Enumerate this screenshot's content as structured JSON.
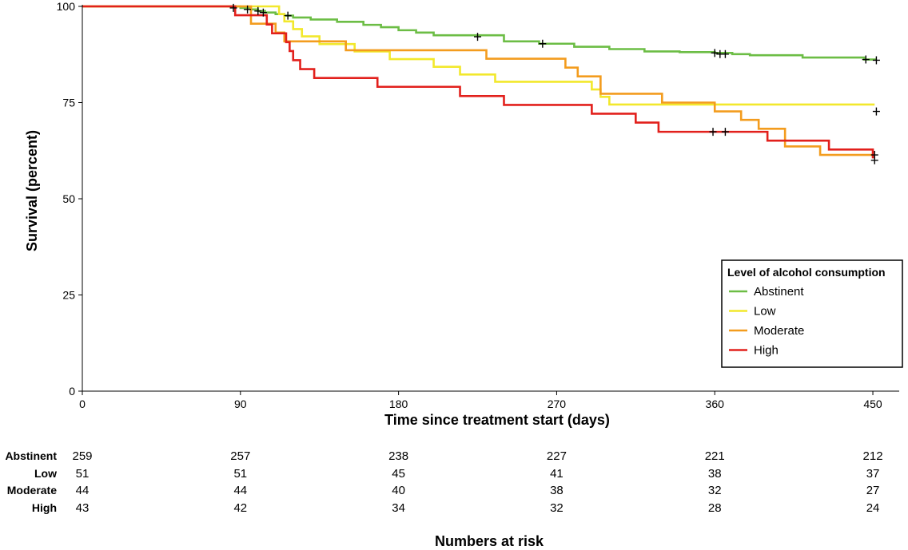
{
  "chart_data": {
    "type": "line",
    "subtype": "kaplan-meier survival curve",
    "title": "",
    "xlabel": "Time since treatment start (days)",
    "ylabel": "Survival (percent)",
    "xlim": [
      0,
      465
    ],
    "ylim": [
      0,
      100
    ],
    "x_ticks": [
      0,
      90,
      180,
      270,
      360,
      450
    ],
    "y_ticks": [
      0,
      25,
      50,
      75,
      100
    ],
    "grid": false,
    "legend": {
      "title": "Level of alcohol consumption",
      "placement": "bottom-right",
      "entries": [
        "Abstinent",
        "Low",
        "Moderate",
        "High"
      ]
    },
    "series": [
      {
        "name": "Abstinent",
        "color": "#6cbd45",
        "x": [
          0,
          90,
          96,
          100,
          104,
          110,
          115,
          120,
          130,
          145,
          160,
          170,
          180,
          190,
          200,
          240,
          260,
          280,
          300,
          320,
          340,
          360,
          370,
          380,
          410,
          445,
          452
        ],
        "y": [
          100,
          99.6,
          99.2,
          98.8,
          98.4,
          98,
          97.6,
          97.1,
          96.6,
          96,
          95.2,
          94.6,
          93.8,
          93.2,
          92.5,
          90.9,
          90.3,
          89.5,
          88.9,
          88.3,
          88.1,
          87.9,
          87.6,
          87.3,
          86.7,
          86.2,
          86.2
        ],
        "censored": [
          [
            86,
            99.6
          ],
          [
            94,
            99.2
          ],
          [
            100,
            98.8
          ],
          [
            103,
            98.4
          ],
          [
            117,
            97.6
          ],
          [
            225,
            92.1
          ],
          [
            262,
            90.3
          ],
          [
            360,
            87.9
          ],
          [
            363,
            87.6
          ],
          [
            366,
            87.6
          ],
          [
            446,
            86.2
          ],
          [
            452,
            86.0
          ]
        ]
      },
      {
        "name": "Low",
        "color": "#f2e82c",
        "x": [
          0,
          112,
          115,
          120,
          125,
          135,
          155,
          175,
          200,
          215,
          235,
          270,
          290,
          295,
          300,
          316,
          340,
          360,
          451
        ],
        "y": [
          100,
          98,
          96.1,
          94.1,
          92.2,
          90.2,
          88.3,
          86.3,
          84.3,
          82.3,
          80.4,
          80.4,
          78.4,
          76.5,
          74.5,
          74.5,
          74.5,
          74.5,
          74.5
        ],
        "censored": [
          [
            452,
            72.7
          ]
        ]
      },
      {
        "name": "Moderate",
        "color": "#f39c1e",
        "x": [
          0,
          96,
          110,
          115,
          150,
          205,
          230,
          265,
          275,
          282,
          295,
          315,
          330,
          345,
          360,
          375,
          385,
          400,
          420,
          450
        ],
        "y": [
          100,
          95.5,
          93.2,
          90.9,
          88.6,
          88.6,
          86.4,
          86.4,
          84.1,
          81.8,
          77.3,
          77.3,
          75,
          75,
          72.7,
          70.5,
          68.2,
          63.6,
          61.4,
          61.4
        ],
        "censored": [
          [
            451,
            61.4
          ]
        ]
      },
      {
        "name": "High",
        "color": "#e2201c",
        "x": [
          0,
          87,
          92,
          105,
          108,
          116,
          118,
          120,
          124,
          132,
          168,
          215,
          240,
          290,
          315,
          328,
          340,
          390,
          425,
          450
        ],
        "y": [
          100,
          97.7,
          97.7,
          95.3,
          93,
          90.7,
          88.4,
          86,
          83.7,
          81.4,
          79.1,
          76.7,
          74.4,
          72.1,
          69.8,
          67.4,
          67.4,
          65.1,
          62.8,
          60.5
        ],
        "censored": [
          [
            359,
            67.4
          ],
          [
            366,
            67.4
          ],
          [
            451,
            60.0
          ]
        ]
      }
    ],
    "risk_table": {
      "title": "Numbers at risk",
      "times": [
        0,
        90,
        180,
        270,
        360,
        450
      ],
      "rows": [
        {
          "name": "Abstinent",
          "values": [
            259,
            257,
            238,
            227,
            221,
            212
          ]
        },
        {
          "name": "Low",
          "values": [
            51,
            51,
            45,
            41,
            38,
            37
          ]
        },
        {
          "name": "Moderate",
          "values": [
            44,
            44,
            40,
            38,
            32,
            27
          ]
        },
        {
          "name": "High",
          "values": [
            43,
            42,
            34,
            32,
            28,
            24
          ]
        }
      ]
    }
  }
}
